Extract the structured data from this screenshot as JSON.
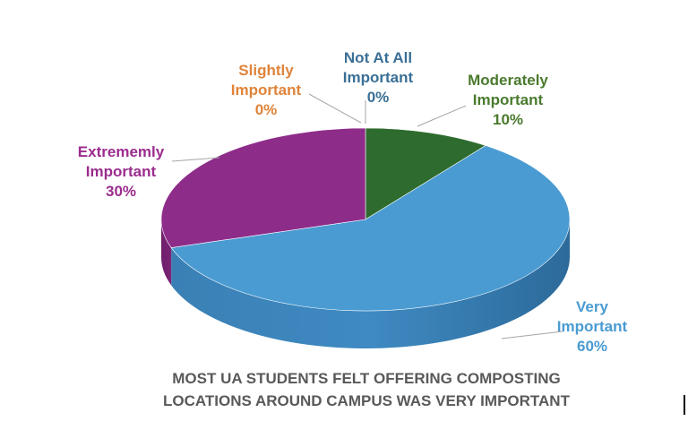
{
  "chart_data": {
    "type": "pie",
    "style": "3d-tilted",
    "title": [
      "MOST UA STUDENTS FELT OFFERING COMPOSTING",
      "LOCATIONS AROUND CAMPUS WAS VERY IMPORTANT"
    ],
    "slices": [
      {
        "label": [
          "Not At All",
          "Important"
        ],
        "value": 0,
        "value_label": "0%",
        "color": "#2E6D9E"
      },
      {
        "label": [
          "Moderately",
          "Important"
        ],
        "value": 10,
        "value_label": "10%",
        "color": "#2E6B2E"
      },
      {
        "label": [
          "Very",
          "Important"
        ],
        "value": 60,
        "value_label": "60%",
        "color": "#4A9BD2"
      },
      {
        "label": [
          "Extrememly",
          "Important"
        ],
        "value": 30,
        "value_label": "30%",
        "color": "#8E2C8A"
      },
      {
        "label": [
          "Slightly",
          "Important"
        ],
        "value": 0,
        "value_label": "0%",
        "color": "#E0843A"
      }
    ],
    "label_colors": {
      "Not At All Important": "#3A6F96",
      "Moderately Important": "#4A7A2E",
      "Very Important": "#4A9BD2",
      "Extrememly Important": "#9B2C8E",
      "Slightly Important": "#E0843A"
    },
    "legend": "none"
  }
}
